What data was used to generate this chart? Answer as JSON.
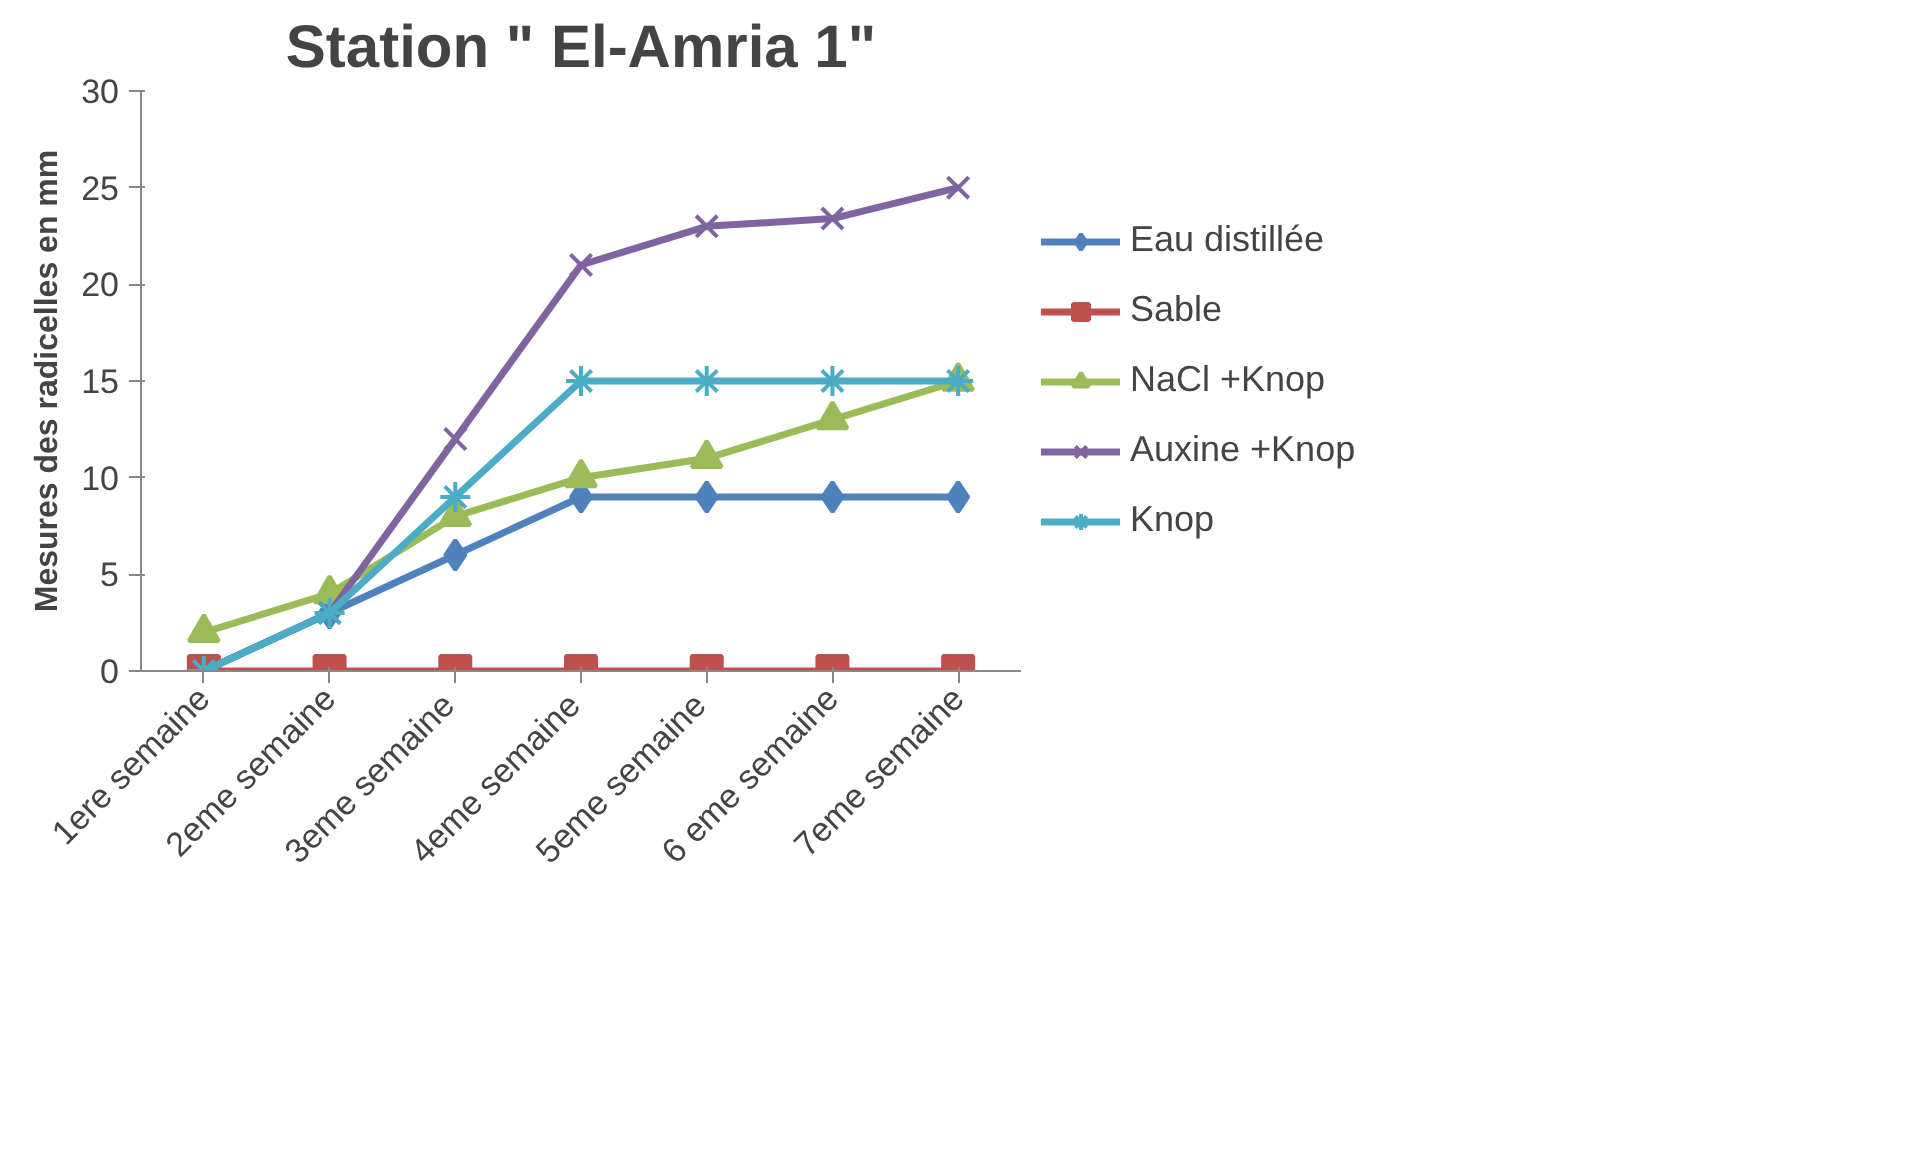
{
  "chart_data": {
    "type": "line",
    "title": "Station \" El-Amria 1\"",
    "ylabel": "Mesures des radicelles en mm",
    "categories": [
      "1ere semaine",
      "2eme semaine",
      "3eme  semaine",
      "4eme  semaine",
      "5eme  semaine",
      "6 eme semaine",
      "7eme semaine"
    ],
    "ylim": [
      0,
      30
    ],
    "yticks": [
      0,
      5,
      10,
      15,
      20,
      25,
      30
    ],
    "grid": false,
    "legend": "right",
    "series": [
      {
        "name": "Eau distillée",
        "color": "#4f81bd",
        "marker": "diamond",
        "values": [
          0,
          3,
          6,
          9,
          9,
          9,
          9
        ]
      },
      {
        "name": "Sable",
        "color": "#c0504d",
        "marker": "square",
        "values": [
          0,
          0,
          0,
          0,
          0,
          0,
          0
        ]
      },
      {
        "name": "NaCl +Knop",
        "color": "#9bbb59",
        "marker": "triangle",
        "values": [
          2,
          4,
          8,
          10,
          11,
          13,
          15
        ]
      },
      {
        "name": "Auxine +Knop",
        "color": "#8064a2",
        "marker": "cross",
        "values": [
          0,
          3,
          12,
          21,
          23,
          23.4,
          25
        ]
      },
      {
        "name": "Knop",
        "color": "#4bacc6",
        "marker": "cross",
        "values": [
          0,
          3,
          9,
          15,
          15,
          15,
          15
        ]
      }
    ]
  }
}
